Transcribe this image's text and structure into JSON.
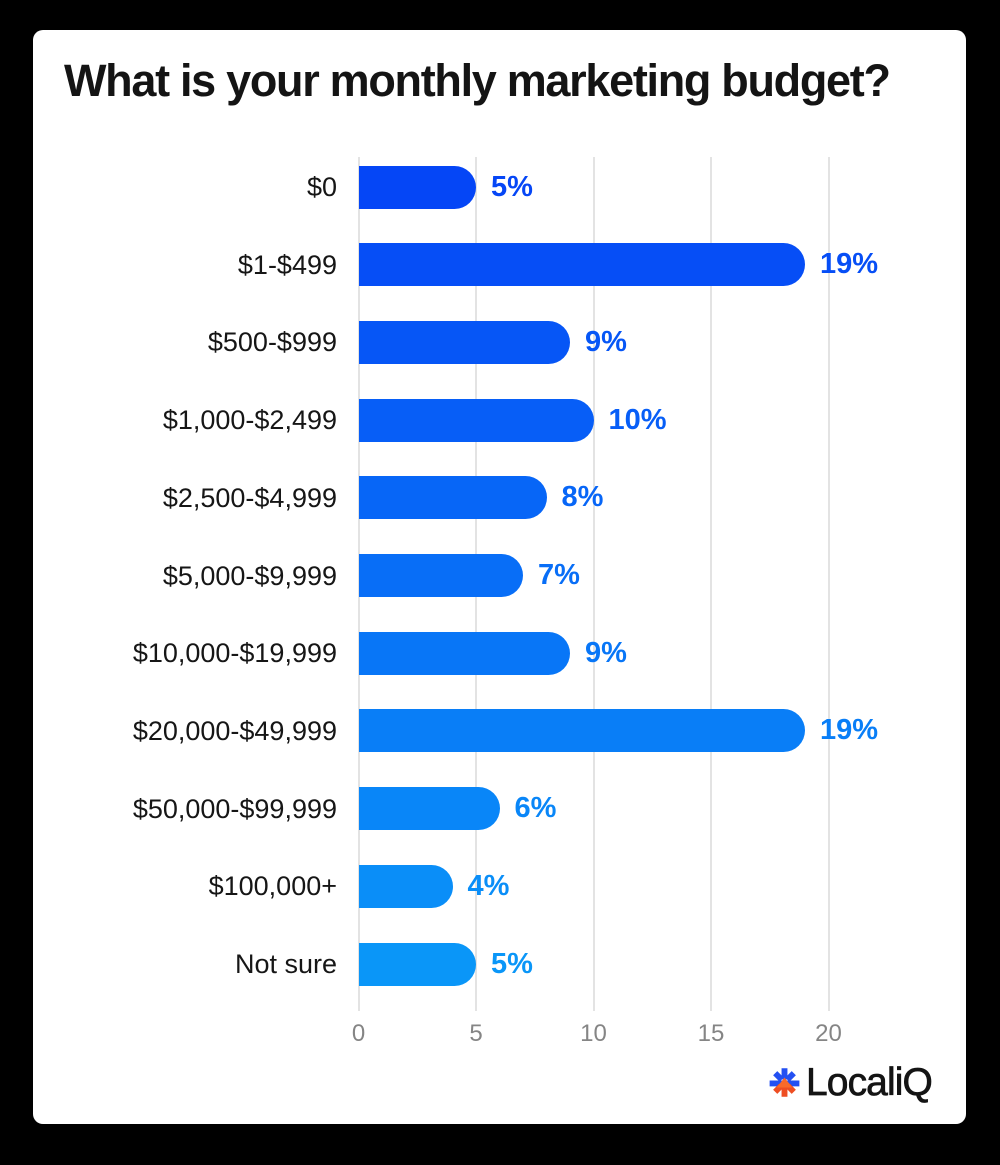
{
  "title": "What is your monthly marketing budget?",
  "logo": {
    "brand": "LocaliQ",
    "icon": "asterisk-arrow-icon",
    "icon_blue": "#2350f2",
    "icon_orange": "#ee4e22",
    "icon_arrow_orange": "#f96a2a"
  },
  "colors": {
    "background": "#000000",
    "card": "#ffffff",
    "text": "#141414",
    "gridline": "#e3e3e3",
    "tick_text": "#858585",
    "bar_color_start": "#0546f6",
    "bar_color_end": "#0a96f8"
  },
  "chart_data": {
    "type": "bar",
    "orientation": "horizontal",
    "title": "What is your monthly marketing budget?",
    "categories": [
      "$0",
      "$1-$499",
      "$500-$999",
      "$1,000-$2,499",
      "$2,500-$4,999",
      "$5,000-$9,999",
      "$10,000-$19,999",
      "$20,000-$49,999",
      "$50,000-$99,999",
      "$100,000+",
      "Not sure"
    ],
    "values": [
      5,
      19,
      9,
      10,
      8,
      7,
      9,
      19,
      6,
      4,
      5
    ],
    "value_labels": [
      "5%",
      "19%",
      "9%",
      "10%",
      "8%",
      "7%",
      "9%",
      "19%",
      "6%",
      "4%",
      "5%"
    ],
    "xlabel": "",
    "ylabel": "",
    "x_ticks": [
      0,
      5,
      10,
      15,
      20
    ],
    "xlim": [
      0,
      20
    ],
    "grid": "vertical",
    "legend": "none",
    "bar_color_start": "#0546f6",
    "bar_color_end": "#0a96f8"
  }
}
